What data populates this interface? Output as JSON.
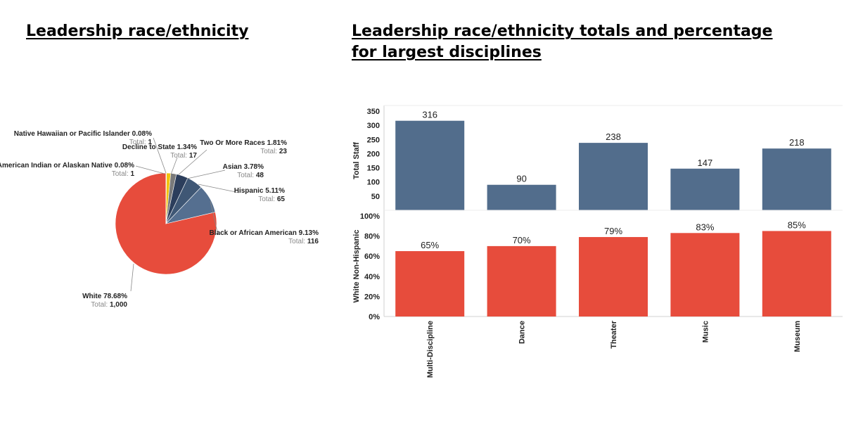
{
  "left_title": "Leadership race/ethnicity",
  "right_title": "Leadership race/ethnicity totals and percentage for largest disciplines",
  "total_prefix": "Total:",
  "chart_data": [
    {
      "type": "pie",
      "slices": [
        {
          "name": "White",
          "percent_label": "78.68%",
          "value": 78.68,
          "total": "1,000",
          "color": "#e74c3c"
        },
        {
          "name": "American Indian or Alaskan Native",
          "percent_label": "0.08%",
          "value": 0.08,
          "total": "1",
          "color": "#4e6a8e"
        },
        {
          "name": "Native Hawaiian or Pacific Islander",
          "percent_label": "0.08%",
          "value": 0.08,
          "total": "1",
          "color": "#7f7f7f"
        },
        {
          "name": "Decline to State",
          "percent_label": "1.34%",
          "value": 1.34,
          "total": "17",
          "color": "#f1c40f"
        },
        {
          "name": "Two Or More Races",
          "percent_label": "1.81%",
          "value": 1.81,
          "total": "23",
          "color": "#7a7a7a"
        },
        {
          "name": "Asian",
          "percent_label": "3.78%",
          "value": 3.78,
          "total": "48",
          "color": "#2c3e5c"
        },
        {
          "name": "Hispanic",
          "percent_label": "5.11%",
          "value": 5.11,
          "total": "65",
          "color": "#3f5775"
        },
        {
          "name": "Black or African American",
          "percent_label": "9.13%",
          "value": 9.13,
          "total": "116",
          "color": "#556f90"
        }
      ]
    },
    {
      "type": "bar",
      "categories": [
        "Multi-Discipline",
        "Dance",
        "Theater",
        "Music",
        "Museum"
      ],
      "values": [
        316,
        90,
        238,
        147,
        218
      ],
      "ylabel": "Total Staff",
      "ylim": [
        0,
        350
      ],
      "yticks": [
        "50",
        "100",
        "150",
        "200",
        "250",
        "300",
        "350"
      ],
      "color": "#526d8c"
    },
    {
      "type": "bar",
      "categories": [
        "Multi-Discipline",
        "Dance",
        "Theater",
        "Music",
        "Museum"
      ],
      "values": [
        65,
        70,
        79,
        83,
        85
      ],
      "value_labels": [
        "65%",
        "70%",
        "79%",
        "83%",
        "85%"
      ],
      "ylabel": "White Non-Hispanic",
      "ylim": [
        0,
        100
      ],
      "yticks": [
        "0%",
        "20%",
        "40%",
        "60%",
        "80%",
        "100%"
      ],
      "color": "#e74c3c"
    }
  ]
}
